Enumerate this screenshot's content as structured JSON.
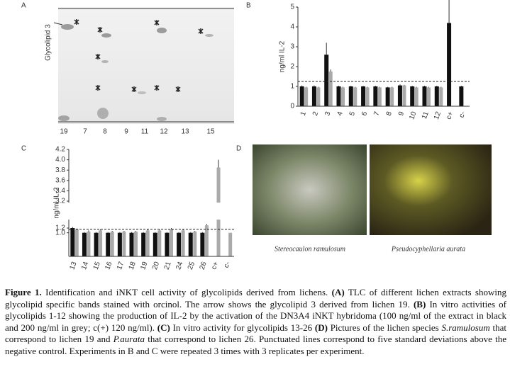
{
  "panel_a": {
    "panel_label": "A",
    "band_label": "Glycolipid 3",
    "lanes": [
      "19",
      "7",
      "8",
      "9",
      "11",
      "12",
      "13",
      "15"
    ]
  },
  "chart_data": [
    {
      "type": "bar",
      "panel_label": "B",
      "y_label": "ng/ml IL-2",
      "categories": [
        "1",
        "2",
        "3",
        "4",
        "5",
        "6",
        "7",
        "8",
        "9",
        "10",
        "11",
        "12",
        "c+",
        "c-"
      ],
      "series": [
        {
          "color": "#111111",
          "values": [
            1.0,
            1.0,
            2.6,
            1.0,
            1.0,
            1.0,
            1.0,
            0.95,
            1.05,
            1.0,
            1.0,
            1.0,
            4.2,
            1.0
          ],
          "errors": [
            0.05,
            0.05,
            0.6,
            0.03,
            0.03,
            0.03,
            0.03,
            0.03,
            0.05,
            0.03,
            0.03,
            0.03,
            1.2,
            0.03
          ]
        },
        {
          "color": "#aaaaaa",
          "values": [
            0.95,
            0.95,
            1.75,
            0.95,
            0.95,
            0.95,
            0.95,
            0.95,
            1.05,
            0.95,
            0.95,
            0.95,
            null,
            null
          ],
          "errors": [
            0.03,
            0.03,
            0.1,
            0.03,
            0.03,
            0.03,
            0.03,
            0.03,
            0.03,
            0.03,
            0.03,
            0.03,
            null,
            null
          ]
        }
      ],
      "ylim": [
        0,
        5
      ],
      "yticks": [
        0,
        1,
        2,
        3,
        4,
        5
      ],
      "threshold": 1.25
    },
    {
      "type": "bar",
      "panel_label": "C",
      "y_label": "ng/ml IL-2",
      "categories": [
        "13",
        "14",
        "15",
        "16",
        "17",
        "18",
        "19",
        "20",
        "21",
        "24",
        "25",
        "26",
        "c+",
        "c-"
      ],
      "series": [
        {
          "color": "#111111",
          "values": [
            1.2,
            1.0,
            1.0,
            1.0,
            1.0,
            1.0,
            1.0,
            1.0,
            1.0,
            1.0,
            1.0,
            1.0,
            null,
            null
          ],
          "errors": [
            0.08,
            0.03,
            0.03,
            0.03,
            0.03,
            0.03,
            0.03,
            0.03,
            0.03,
            0.03,
            0.03,
            0.03,
            null,
            null
          ]
        },
        {
          "color": "#aaaaaa",
          "values": [
            1.15,
            1.05,
            1.1,
            1.05,
            1.05,
            1.05,
            1.1,
            1.1,
            1.15,
            1.1,
            1.05,
            1.4,
            3.85,
            1.0
          ],
          "errors": [
            0.03,
            0.05,
            0.05,
            0.03,
            0.03,
            0.03,
            0.05,
            0.05,
            0.05,
            0.05,
            0.03,
            0.1,
            0.15,
            null
          ]
        }
      ],
      "ylim": [
        0,
        4.2
      ],
      "axis_break": [
        1.2,
        3.2
      ],
      "yticks": [
        {
          "value": 1.0,
          "label": "1.0"
        },
        1.2,
        3.2,
        3.4,
        3.6,
        3.8,
        {
          "value": 4.0,
          "label": "4.0"
        },
        4.2
      ],
      "threshold": 1.15
    }
  ],
  "panel_d": {
    "panel_label": "D",
    "captions": [
      "Stereocaulon ramulosum",
      "Pseudocyphellaria aurata"
    ]
  },
  "caption": {
    "segments": [
      {
        "text": "Figure 1.",
        "style": "bold"
      },
      {
        "text": " Identification and iNKT cell activity of glycolipids derived from lichens. ",
        "style": "normal"
      },
      {
        "text": "(A)",
        "style": "bold"
      },
      {
        "text": " TLC of different lichen extracts showing glycolipid specific bands stained with orcinol. The arrow shows the glycolipid 3 derived from lichen 19. ",
        "style": "normal"
      },
      {
        "text": "(B)",
        "style": "bold"
      },
      {
        "text": " In vitro activities of glycolipids 1-12 showing the production of IL-2 by the activation of the DN3A4 iNKT hybridoma (100 ng/ml of the extract in black and 200 ng/ml in grey; c(+) 120 ng/ml). ",
        "style": "normal"
      },
      {
        "text": "(C)",
        "style": "bold"
      },
      {
        "text": " In vitro activity for glycolipids 13-26 ",
        "style": "normal"
      },
      {
        "text": "(D)",
        "style": "bold"
      },
      {
        "text": " Pictures of the lichen species ",
        "style": "normal"
      },
      {
        "text": "S.ramulosum",
        "style": "italic"
      },
      {
        "text": " that correspond to lichen 19 and ",
        "style": "normal"
      },
      {
        "text": "P.aurata",
        "style": "italic"
      },
      {
        "text": " that correspond to lichen 26. Punctuated lines correspond to five standard deviations above the negative control. Experiments in B and C were repeated 3 times with 3 replicates per experiment.",
        "style": "normal"
      }
    ]
  }
}
